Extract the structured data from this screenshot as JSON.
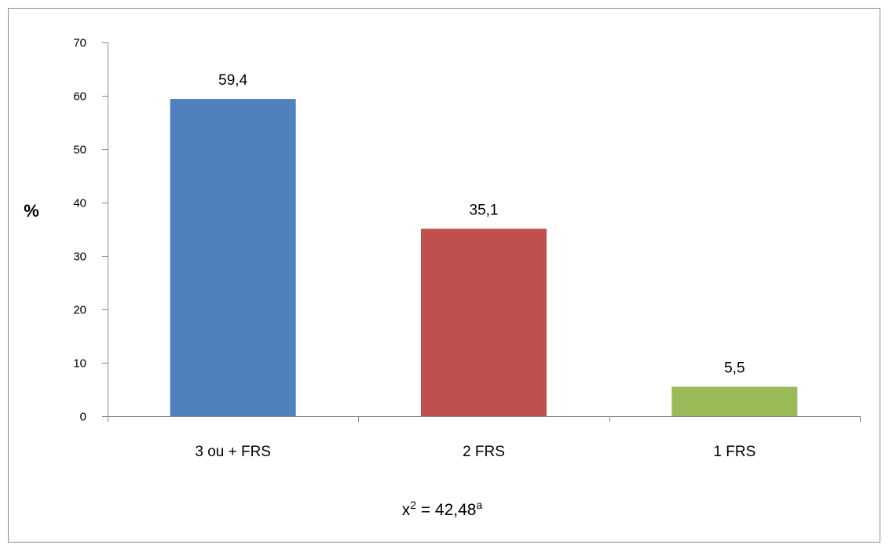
{
  "chart_data": {
    "type": "bar",
    "title": "",
    "xlabel": "",
    "ylabel": "%",
    "ylim": [
      0,
      70
    ],
    "yticks": [
      0,
      10,
      20,
      30,
      40,
      50,
      60,
      70
    ],
    "ytick_labels": [
      "0",
      "10",
      "20",
      "30",
      "40",
      "50",
      "60",
      "70"
    ],
    "categories": [
      "3 ou + FRS",
      "2 FRS",
      "1 FRS"
    ],
    "values": [
      59.4,
      35.1,
      5.5
    ],
    "value_labels": [
      "59,4",
      "35,1",
      "5,5"
    ],
    "colors": [
      "#4f81bd",
      "#c0504d",
      "#9bbb59"
    ],
    "grid": false,
    "legend": "none",
    "annotation": {
      "prefix": "x",
      "exponent": "2",
      "middle": " = 42,48",
      "suffix": "a"
    }
  }
}
